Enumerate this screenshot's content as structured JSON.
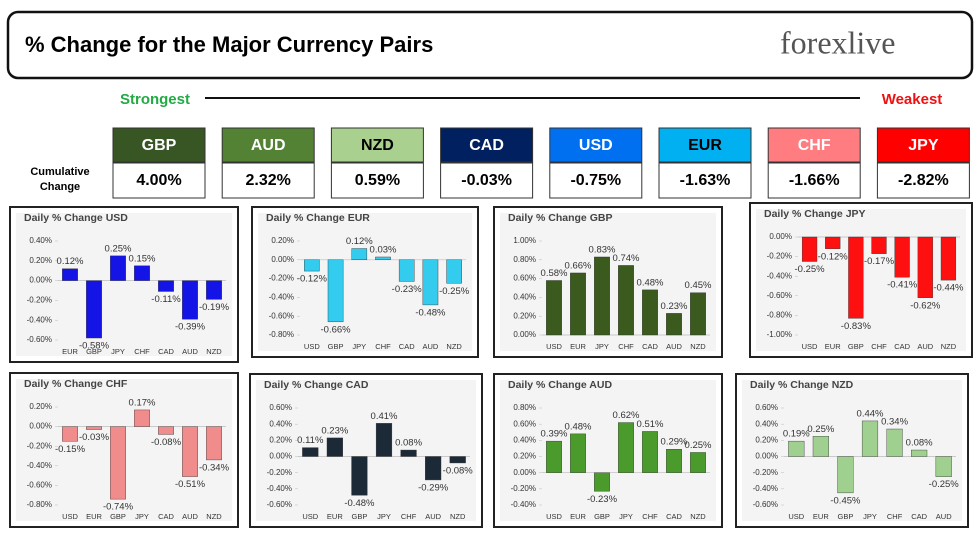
{
  "header": {
    "title": "% Change for the Major Currency Pairs",
    "logo": "forexlive",
    "strongest": "Strongest",
    "weakest": "Weakest",
    "cumulative_label": "Cumulative Change"
  },
  "tiles": [
    {
      "currency": "GBP",
      "change": "4.00%",
      "color": "#375623",
      "text_color": "#ffffff"
    },
    {
      "currency": "AUD",
      "change": "2.32%",
      "color": "#548235",
      "text_color": "#ffffff"
    },
    {
      "currency": "NZD",
      "change": "0.59%",
      "color": "#a9d08e",
      "text_color": "#000000"
    },
    {
      "currency": "CAD",
      "change": "-0.03%",
      "color": "#002060",
      "text_color": "#ffffff"
    },
    {
      "currency": "USD",
      "change": "-0.75%",
      "color": "#0070f0",
      "text_color": "#ffffff"
    },
    {
      "currency": "EUR",
      "change": "-1.63%",
      "color": "#00b0f0",
      "text_color": "#000000"
    },
    {
      "currency": "CHF",
      "change": "-1.66%",
      "color": "#ff7c80",
      "text_color": "#ffffff"
    },
    {
      "currency": "JPY",
      "change": "-2.82%",
      "color": "#ff0000",
      "text_color": "#ffffff"
    }
  ],
  "chart_data": [
    {
      "type": "bar",
      "title": "Daily % Change USD",
      "color": "#1414e6",
      "categories": [
        "EUR",
        "GBP",
        "JPY",
        "CHF",
        "CAD",
        "AUD",
        "NZD"
      ],
      "values": [
        0.12,
        -0.58,
        0.25,
        0.15,
        -0.11,
        -0.39,
        -0.19
      ],
      "value_labels": [
        "0.12%",
        "-0.58%",
        "0.25%",
        "0.15%",
        "-0.11%",
        "-0.39%",
        "-0.19%"
      ],
      "ylim": [
        -0.6,
        0.4
      ],
      "yticks": [
        {
          "value": 0.4,
          "label": "0.40%"
        },
        {
          "value": 0.2,
          "label": "0.20%"
        },
        {
          "value": 0,
          "label": "0.00%"
        },
        {
          "value": -0.2,
          "label": "-0.20%"
        },
        {
          "value": -0.4,
          "label": "-0.40%"
        },
        {
          "value": -0.6,
          "label": "-0.60%"
        }
      ]
    },
    {
      "type": "bar",
      "title": "Daily % Change EUR",
      "color": "#33cbee",
      "categories": [
        "USD",
        "GBP",
        "JPY",
        "CHF",
        "CAD",
        "AUD",
        "NZD"
      ],
      "values": [
        -0.12,
        -0.66,
        0.12,
        0.03,
        -0.23,
        -0.48,
        -0.25
      ],
      "value_labels": [
        "-0.12%",
        "-0.66%",
        "0.12%",
        "0.03%",
        "-0.23%",
        "-0.48%",
        "-0.25%"
      ],
      "ylim": [
        -0.8,
        0.2
      ],
      "yticks": [
        {
          "value": 0.2,
          "label": "0.20%"
        },
        {
          "value": 0,
          "label": "0.00%"
        },
        {
          "value": -0.2,
          "label": "-0.20%"
        },
        {
          "value": -0.4,
          "label": "-0.40%"
        },
        {
          "value": -0.6,
          "label": "-0.60%"
        },
        {
          "value": -0.8,
          "label": "-0.80%"
        }
      ]
    },
    {
      "type": "bar",
      "title": "Daily % Change GBP",
      "color": "#3a5a1e",
      "categories": [
        "USD",
        "EUR",
        "JPY",
        "CHF",
        "CAD",
        "AUD",
        "NZD"
      ],
      "values": [
        0.58,
        0.66,
        0.83,
        0.74,
        0.48,
        0.23,
        0.45
      ],
      "value_labels": [
        "0.58%",
        "0.66%",
        "0.83%",
        "0.74%",
        "0.48%",
        "0.23%",
        "0.45%"
      ],
      "ylim": [
        0,
        1
      ],
      "yticks": [
        {
          "value": 1,
          "label": "1.00%"
        },
        {
          "value": 0.8,
          "label": "0.80%"
        },
        {
          "value": 0.6,
          "label": "0.60%"
        },
        {
          "value": 0.4,
          "label": "0.40%"
        },
        {
          "value": 0.2,
          "label": "0.20%"
        },
        {
          "value": 0,
          "label": "0.00%"
        }
      ]
    },
    {
      "type": "bar",
      "title": "Daily % Change JPY",
      "color": "#ff1010",
      "categories": [
        "USD",
        "EUR",
        "GBP",
        "CHF",
        "CAD",
        "AUD",
        "NZD"
      ],
      "values": [
        -0.25,
        -0.12,
        -0.83,
        -0.17,
        -0.41,
        -0.62,
        -0.44
      ],
      "value_labels": [
        "-0.25%",
        "-0.12%",
        "-0.83%",
        "-0.17%",
        "-0.41%",
        "-0.62%",
        "-0.44%"
      ],
      "ylim": [
        -1,
        0
      ],
      "yticks": [
        {
          "value": 0,
          "label": "0.00%"
        },
        {
          "value": -0.2,
          "label": "-0.20%"
        },
        {
          "value": -0.4,
          "label": "-0.40%"
        },
        {
          "value": -0.6,
          "label": "-0.60%"
        },
        {
          "value": -0.8,
          "label": "-0.80%"
        },
        {
          "value": -1,
          "label": "-1.00%"
        }
      ]
    },
    {
      "type": "bar",
      "title": "Daily % Change CHF",
      "color": "#f08c8c",
      "categories": [
        "USD",
        "EUR",
        "GBP",
        "JPY",
        "CAD",
        "AUD",
        "NZD"
      ],
      "values": [
        -0.15,
        -0.03,
        -0.74,
        0.17,
        -0.08,
        -0.51,
        -0.34
      ],
      "value_labels": [
        "-0.15%",
        "-0.03%",
        "-0.74%",
        "0.17%",
        "-0.08%",
        "-0.51%",
        "-0.34%"
      ],
      "ylim": [
        -0.8,
        0.2
      ],
      "yticks": [
        {
          "value": 0.2,
          "label": "0.20%"
        },
        {
          "value": 0,
          "label": "0.00%"
        },
        {
          "value": -0.2,
          "label": "-0.20%"
        },
        {
          "value": -0.4,
          "label": "-0.40%"
        },
        {
          "value": -0.6,
          "label": "-0.60%"
        },
        {
          "value": -0.8,
          "label": "-0.80%"
        }
      ]
    },
    {
      "type": "bar",
      "title": "Daily % Change CAD",
      "color": "#1c2a38",
      "categories": [
        "USD",
        "EUR",
        "GBP",
        "JPY",
        "CHF",
        "AUD",
        "NZD"
      ],
      "values": [
        0.11,
        0.23,
        -0.48,
        0.41,
        0.08,
        -0.29,
        -0.08
      ],
      "value_labels": [
        "0.11%",
        "0.23%",
        "-0.48%",
        "0.41%",
        "0.08%",
        "-0.29%",
        "-0.08%"
      ],
      "ylim": [
        -0.6,
        0.6
      ],
      "yticks": [
        {
          "value": 0.6,
          "label": "0.60%"
        },
        {
          "value": 0.4,
          "label": "0.40%"
        },
        {
          "value": 0.2,
          "label": "0.20%"
        },
        {
          "value": 0,
          "label": "0.00%"
        },
        {
          "value": -0.2,
          "label": "-0.20%"
        },
        {
          "value": -0.4,
          "label": "-0.40%"
        },
        {
          "value": -0.6,
          "label": "-0.60%"
        }
      ]
    },
    {
      "type": "bar",
      "title": "Daily % Change AUD",
      "color": "#4b9a2c",
      "categories": [
        "USD",
        "EUR",
        "GBP",
        "JPY",
        "CHF",
        "CAD",
        "NZD"
      ],
      "values": [
        0.39,
        0.48,
        -0.23,
        0.62,
        0.51,
        0.29,
        0.25
      ],
      "value_labels": [
        "0.39%",
        "0.48%",
        "-0.23%",
        "0.62%",
        "0.51%",
        "0.29%",
        "0.25%"
      ],
      "ylim": [
        -0.4,
        0.8
      ],
      "yticks": [
        {
          "value": 0.8,
          "label": "0.80%"
        },
        {
          "value": 0.6,
          "label": "0.60%"
        },
        {
          "value": 0.4,
          "label": "0.40%"
        },
        {
          "value": 0.2,
          "label": "0.20%"
        },
        {
          "value": 0,
          "label": "0.00%"
        },
        {
          "value": -0.2,
          "label": "-0.20%"
        },
        {
          "value": -0.4,
          "label": "-0.40%"
        }
      ]
    },
    {
      "type": "bar",
      "title": "Daily % Change NZD",
      "color": "#9fd08f",
      "categories": [
        "USD",
        "EUR",
        "GBP",
        "JPY",
        "CHF",
        "CAD",
        "AUD"
      ],
      "values": [
        0.19,
        0.25,
        -0.45,
        0.44,
        0.34,
        0.08,
        -0.25
      ],
      "value_labels": [
        "0.19%",
        "0.25%",
        "-0.45%",
        "0.44%",
        "0.34%",
        "0.08%",
        "-0.25%"
      ],
      "ylim": [
        -0.6,
        0.6
      ],
      "yticks": [
        {
          "value": 0.6,
          "label": "0.60%"
        },
        {
          "value": 0.4,
          "label": "0.40%"
        },
        {
          "value": 0.2,
          "label": "0.20%"
        },
        {
          "value": 0,
          "label": "0.00%"
        },
        {
          "value": -0.2,
          "label": "-0.20%"
        },
        {
          "value": -0.4,
          "label": "-0.40%"
        },
        {
          "value": -0.6,
          "label": "-0.60%"
        }
      ]
    }
  ]
}
